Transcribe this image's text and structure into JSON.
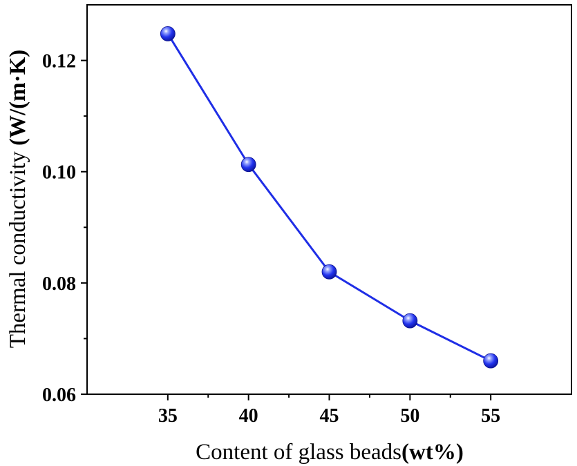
{
  "chart_data": {
    "type": "line",
    "title": "",
    "xlabel": "Content of glass beads",
    "xlabel_unit": "(wt%)",
    "ylabel": "Thermal conductivity ",
    "ylabel_unit": "(W/(m·K)",
    "x": [
      35,
      40,
      45,
      50,
      55
    ],
    "series": [
      {
        "values": [
          0.1248,
          0.1013,
          0.082,
          0.0732,
          0.066
        ]
      }
    ],
    "xlim": [
      30,
      60
    ],
    "ylim": [
      0.06,
      0.13
    ],
    "x_major_ticks": [
      35,
      40,
      45,
      50,
      55
    ],
    "x_tick_labels": [
      "35",
      "40",
      "45",
      "50",
      "55"
    ],
    "y_major_ticks": [
      0.06,
      0.08,
      0.1,
      0.12
    ],
    "y_tick_labels": [
      "0.06",
      "0.08",
      "0.10",
      "0.12"
    ],
    "grid": false,
    "legend": "none",
    "line_color": "#1f2ee6",
    "marker_color": "#2233ee",
    "marker_style": "shaded-sphere"
  }
}
